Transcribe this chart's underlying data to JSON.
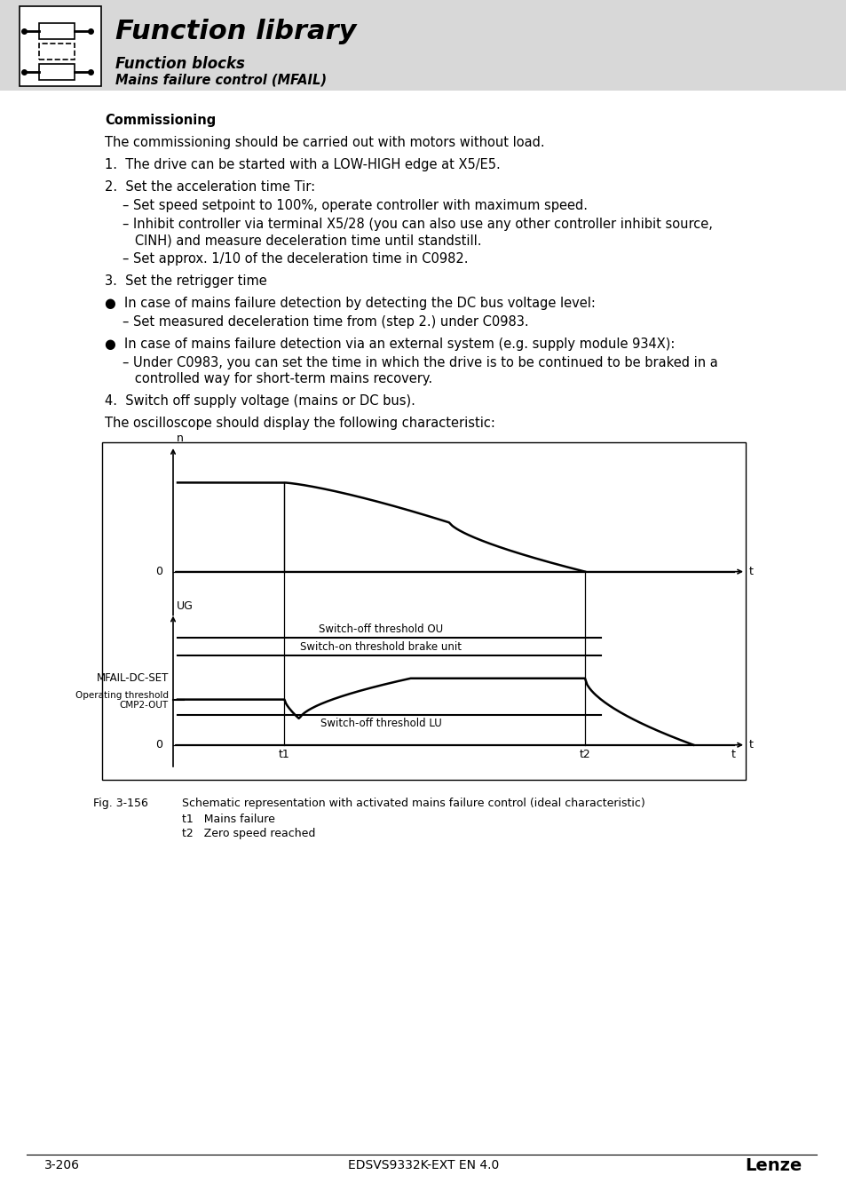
{
  "page_bg": "#ffffff",
  "header_bg": "#d8d8d8",
  "header_title": "Function library",
  "header_sub1": "Function blocks",
  "header_sub2": "Mains failure control (MFAIL)",
  "section_title": "Commissioning",
  "fig_caption": "Fig. 3-156",
  "fig_desc": "Schematic representation with activated mains failure control (ideal characteristic)",
  "fig_t1": "t1   Mains failure",
  "fig_t2": "t2   Zero speed reached",
  "footer_left": "3-206",
  "footer_center": "EDSVS9332K-EXT EN 4.0",
  "footer_right": "Lenze"
}
